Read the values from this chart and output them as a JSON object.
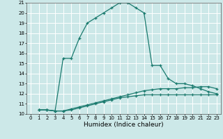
{
  "line1_x": [
    1,
    2,
    3,
    4,
    5,
    6,
    7,
    8,
    9,
    10,
    11,
    12,
    13,
    14,
    15,
    16,
    17,
    18,
    19,
    20,
    21,
    22,
    23
  ],
  "line1_y": [
    10.4,
    10.4,
    10.3,
    15.5,
    15.5,
    17.5,
    19.0,
    19.5,
    20.0,
    20.5,
    21.0,
    21.0,
    20.5,
    20.0,
    14.8,
    14.8,
    13.5,
    13.0,
    13.0,
    12.8,
    12.5,
    12.2,
    12.0
  ],
  "line2_x": [
    1,
    2,
    3,
    4,
    5,
    6,
    7,
    8,
    9,
    10,
    11,
    12,
    13,
    14,
    15,
    16,
    17,
    18,
    19,
    20,
    21,
    22,
    23
  ],
  "line2_y": [
    10.4,
    10.4,
    10.3,
    10.3,
    10.5,
    10.7,
    10.9,
    11.1,
    11.3,
    11.5,
    11.7,
    11.9,
    12.1,
    12.3,
    12.4,
    12.5,
    12.5,
    12.5,
    12.6,
    12.6,
    12.7,
    12.7,
    12.5
  ],
  "line3_x": [
    1,
    2,
    3,
    4,
    5,
    6,
    7,
    8,
    9,
    10,
    11,
    12,
    13,
    14,
    15,
    16,
    17,
    18,
    19,
    20,
    21,
    22,
    23
  ],
  "line3_y": [
    10.4,
    10.4,
    10.3,
    10.3,
    10.4,
    10.6,
    10.8,
    11.0,
    11.2,
    11.4,
    11.6,
    11.7,
    11.8,
    11.9,
    11.9,
    11.9,
    11.9,
    11.9,
    11.9,
    11.9,
    11.9,
    11.9,
    11.9
  ],
  "line_color": "#1a7a6e",
  "bg_color": "#cce8e8",
  "grid_color": "#ffffff",
  "xlabel": "Humidex (Indice chaleur)",
  "xlim": [
    -0.5,
    23.5
  ],
  "ylim": [
    10,
    21
  ],
  "yticks": [
    10,
    11,
    12,
    13,
    14,
    15,
    16,
    17,
    18,
    19,
    20,
    21
  ],
  "xticks": [
    0,
    1,
    2,
    3,
    4,
    5,
    6,
    7,
    8,
    9,
    10,
    11,
    12,
    13,
    14,
    15,
    16,
    17,
    18,
    19,
    20,
    21,
    22,
    23
  ],
  "marker": "+",
  "markersize": 3.5,
  "linewidth": 0.9,
  "xlabel_fontsize": 6.5,
  "tick_fontsize": 5.0
}
